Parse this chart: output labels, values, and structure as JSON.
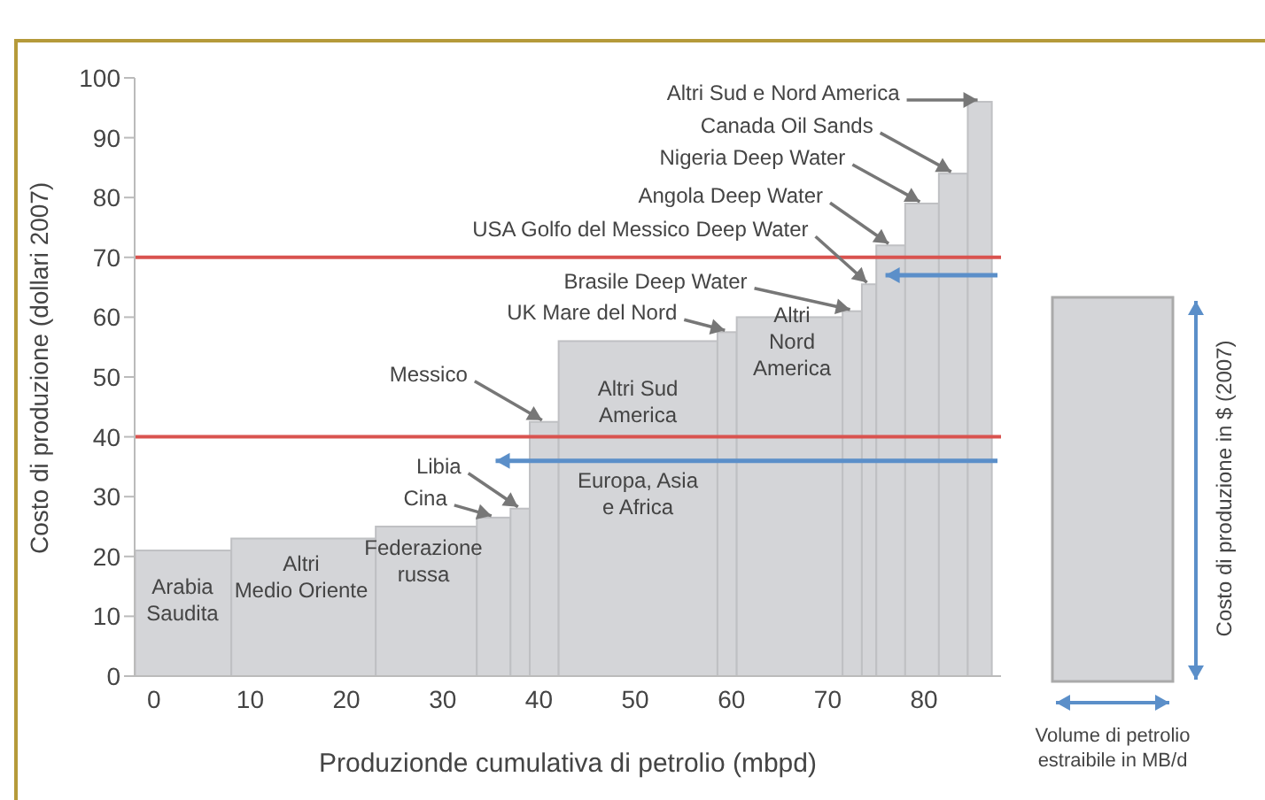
{
  "chart_data": {
    "type": "histogram",
    "xlabel": "Produzionde cumulativa di petrolio (mbpd)",
    "ylabel": "Costo di produzione  (dollari 2007)",
    "bins": [
      -2,
      8,
      23,
      33.5,
      37,
      39,
      42,
      58.5,
      60.5,
      71.5,
      73.5,
      75,
      78,
      81.5,
      84.5,
      87
    ],
    "values": [
      21,
      23,
      25,
      26.5,
      28,
      42.5,
      56,
      57.5,
      60,
      61,
      65.5,
      72,
      79,
      84,
      96
    ],
    "color": "#d4d5d8",
    "xlim": [
      -2,
      88
    ],
    "xticks": [
      0,
      10,
      20,
      30,
      40,
      50,
      60,
      70,
      80
    ],
    "ylim": [
      0,
      100
    ],
    "yticks": [
      0,
      10,
      20,
      30,
      40,
      50,
      60,
      70,
      80,
      90,
      100
    ],
    "ref_lines": [
      {
        "axis": "y",
        "value": 40,
        "color": "#d9534f"
      },
      {
        "axis": "y",
        "value": 70,
        "color": "#d9534f"
      }
    ],
    "annotations": [
      "Arabia\nSaudita",
      "Altri\nMedio Oriente",
      "Federazione\nrussa",
      {
        "text": "Cina",
        "x": 35.25,
        "y": 26.5
      },
      {
        "text": "Libia",
        "x": 38,
        "y": 28
      },
      {
        "text": "Messico",
        "x": 40.5,
        "y": 42.5
      },
      "Altri Sud\nAmerica",
      "Europa, Asia\ne Africa",
      {
        "text": "UK Mare del Nord",
        "x": 59.5,
        "y": 57.5
      },
      "Altri\nNord\nAmerica",
      {
        "text": "Brasile Deep Water",
        "x": 72.5,
        "y": 61
      },
      {
        "text": "USA Golfo del Messico Deep Water",
        "x": 74.25,
        "y": 65.5
      },
      {
        "text": "Angola Deep Water",
        "x": 76.5,
        "y": 72
      },
      {
        "text": "Nigeria Deep Water",
        "x": 79.75,
        "y": 79
      },
      {
        "text": "Canada Oil Sands",
        "x": 83,
        "y": 84
      },
      {
        "text": "Altri Sud e Nord America",
        "x": 85.75,
        "y": 96
      },
      "Costo di produzione in $ (2007)",
      "Volume di petrolio\nestraibile in MB/d"
    ]
  }
}
